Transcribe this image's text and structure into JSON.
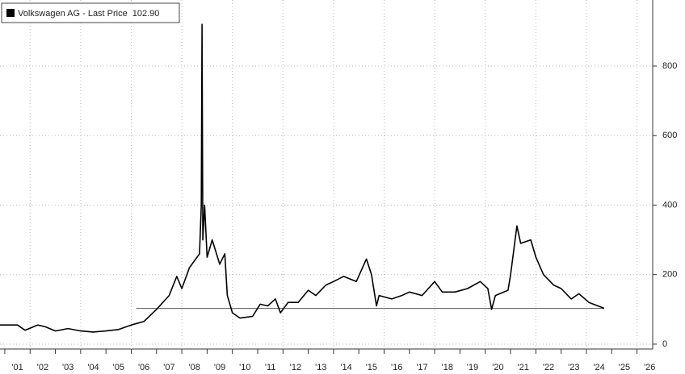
{
  "chart_data": {
    "type": "line",
    "series": [
      {
        "name": "Volkswagen AG - Last Price",
        "color": "#000000",
        "x": [
          2000.8,
          2001.5,
          2001.8,
          2002.3,
          2002.6,
          2003.0,
          2003.5,
          2004.0,
          2004.5,
          2005.0,
          2005.5,
          2006.0,
          2006.5,
          2007.0,
          2007.5,
          2007.8,
          2008.0,
          2008.3,
          2008.7,
          2008.77,
          2008.8,
          2008.83,
          2008.9,
          2009.0,
          2009.2,
          2009.5,
          2009.7,
          2009.8,
          2010.0,
          2010.3,
          2010.8,
          2011.1,
          2011.4,
          2011.7,
          2011.9,
          2012.2,
          2012.6,
          2013.0,
          2013.3,
          2013.7,
          2014.0,
          2014.4,
          2014.9,
          2015.3,
          2015.5,
          2015.7,
          2015.8,
          2016.3,
          2016.7,
          2017.0,
          2017.5,
          2018.0,
          2018.3,
          2018.8,
          2019.3,
          2019.8,
          2020.1,
          2020.25,
          2020.4,
          2020.9,
          2021.0,
          2021.25,
          2021.4,
          2021.8,
          2022.0,
          2022.3,
          2022.7,
          2023.0,
          2023.4,
          2023.7,
          2024.1,
          2024.7
        ],
        "values": [
          55,
          55,
          40,
          55,
          50,
          38,
          45,
          38,
          35,
          38,
          42,
          55,
          65,
          100,
          140,
          195,
          160,
          220,
          260,
          400,
          920,
          300,
          400,
          250,
          300,
          230,
          260,
          140,
          90,
          75,
          80,
          115,
          110,
          130,
          90,
          120,
          120,
          155,
          140,
          170,
          180,
          195,
          180,
          245,
          200,
          110,
          140,
          130,
          140,
          150,
          140,
          180,
          150,
          150,
          160,
          180,
          160,
          100,
          140,
          155,
          200,
          340,
          290,
          300,
          250,
          200,
          170,
          160,
          130,
          145,
          120,
          103
        ]
      }
    ],
    "reference_line": {
      "value": 102.9,
      "label": "102.90",
      "x": [
        2006.2,
        2024.7
      ]
    },
    "xlim": [
      2000.81,
      2026.62
    ],
    "xticks": [
      {
        "value": 2001.5,
        "label": "'01"
      },
      {
        "value": 2002.5,
        "label": "'02"
      },
      {
        "value": 2003.5,
        "label": "'03"
      },
      {
        "value": 2004.5,
        "label": "'04"
      },
      {
        "value": 2005.5,
        "label": "'05"
      },
      {
        "value": 2006.5,
        "label": "'06"
      },
      {
        "value": 2007.5,
        "label": "'07"
      },
      {
        "value": 2008.5,
        "label": "'08"
      },
      {
        "value": 2009.5,
        "label": "'09"
      },
      {
        "value": 2010.5,
        "label": "'10"
      },
      {
        "value": 2011.5,
        "label": "'11"
      },
      {
        "value": 2012.5,
        "label": "'12"
      },
      {
        "value": 2013.5,
        "label": "'13"
      },
      {
        "value": 2014.5,
        "label": "'14"
      },
      {
        "value": 2015.5,
        "label": "'15"
      },
      {
        "value": 2016.5,
        "label": "'16"
      },
      {
        "value": 2017.5,
        "label": "'17"
      },
      {
        "value": 2018.5,
        "label": "'18"
      },
      {
        "value": 2019.5,
        "label": "'19"
      },
      {
        "value": 2020.5,
        "label": "'20"
      },
      {
        "value": 2021.5,
        "label": "'21"
      },
      {
        "value": 2022.5,
        "label": "'22"
      },
      {
        "value": 2023.5,
        "label": "'23"
      },
      {
        "value": 2024.5,
        "label": "'24"
      },
      {
        "value": 2025.5,
        "label": "'25"
      },
      {
        "value": 2026.5,
        "label": "'26"
      }
    ],
    "ylim": [
      -14,
      990
    ],
    "yticks": [
      0,
      200,
      400,
      600,
      800
    ],
    "grid": true
  }
}
